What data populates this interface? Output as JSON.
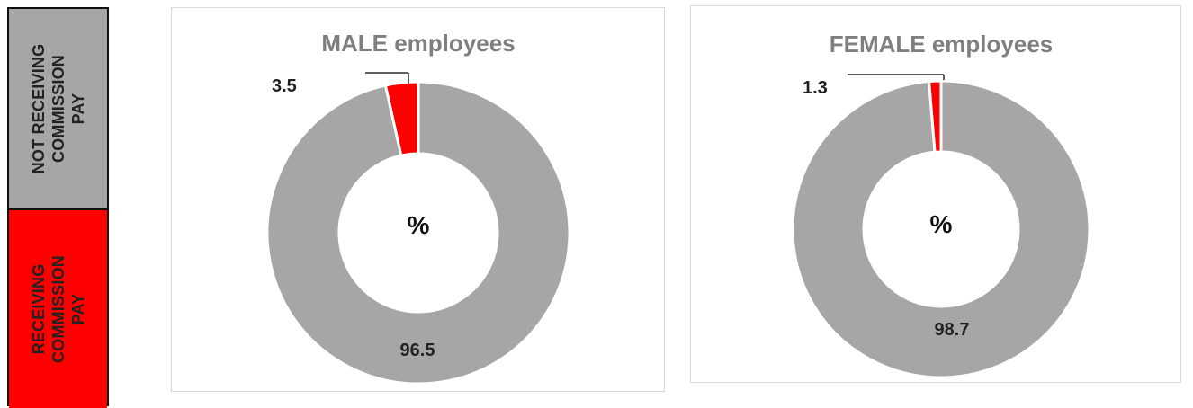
{
  "legend": {
    "items": [
      {
        "label": "NOT RECEIVING\nCOMMISSION\nPAY",
        "color": "#a6a6a6"
      },
      {
        "label": "RECEIVING\nCOMMISSION\nPAY",
        "color": "#ff0000"
      }
    ]
  },
  "chart_data": [
    {
      "type": "pie",
      "variant": "donut",
      "title": "MALE employees",
      "center_label": "%",
      "categories": [
        "RECEIVING COMMISSION PAY",
        "NOT RECEIVING COMMISSION PAY"
      ],
      "values": [
        3.5,
        96.5
      ],
      "labels": [
        "3.5",
        "96.5"
      ],
      "colors": [
        "#ff0000",
        "#a6a6a6"
      ],
      "legend": "left"
    },
    {
      "type": "pie",
      "variant": "donut",
      "title": "FEMALE employees",
      "center_label": "%",
      "categories": [
        "RECEIVING COMMISSION PAY",
        "NOT RECEIVING COMMISSION PAY"
      ],
      "values": [
        1.3,
        98.7
      ],
      "labels": [
        "1.3",
        "98.7"
      ],
      "colors": [
        "#ff0000",
        "#a6a6a6"
      ],
      "legend": "left"
    }
  ]
}
